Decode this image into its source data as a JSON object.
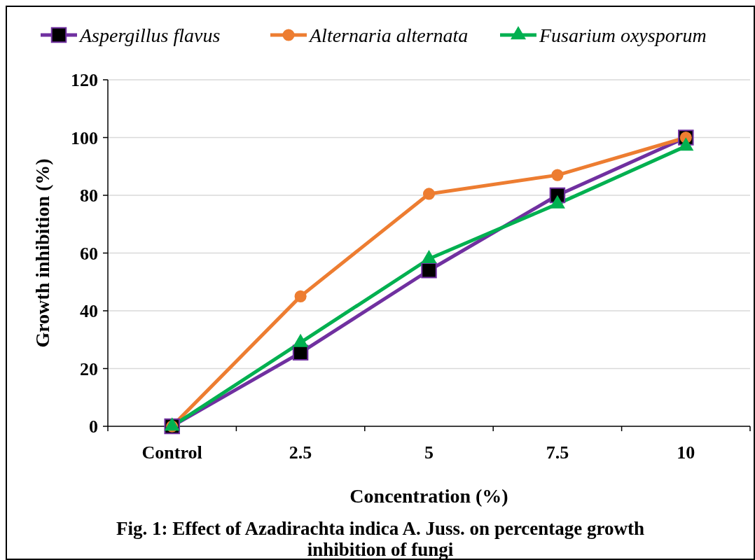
{
  "chart_data": {
    "type": "line",
    "title": "Fig. 1: Effect of Azadirachta indica A. Juss. on percentage growth inhibition of fungi",
    "xlabel": "Concentration (%)",
    "ylabel": "Growth inhibition (%)",
    "categories": [
      "Control",
      "2.5",
      "5",
      "7.5",
      "10"
    ],
    "ylim": [
      0,
      120
    ],
    "yticks": [
      0,
      20,
      40,
      60,
      80,
      100,
      120
    ],
    "grid": "y",
    "legend": "top",
    "series": [
      {
        "name": "Aspergillus flavus",
        "color": "#7030a0",
        "marker": "square",
        "values": [
          0,
          25.5,
          54,
          80,
          100
        ]
      },
      {
        "name": "Alternaria alternata",
        "color": "#ed7d31",
        "marker": "circle",
        "values": [
          0,
          45,
          80.5,
          87,
          100
        ]
      },
      {
        "name": "Fusarium oxysporum",
        "color": "#00b050",
        "marker": "triangle",
        "values": [
          0,
          29,
          58,
          77,
          97
        ]
      }
    ]
  }
}
